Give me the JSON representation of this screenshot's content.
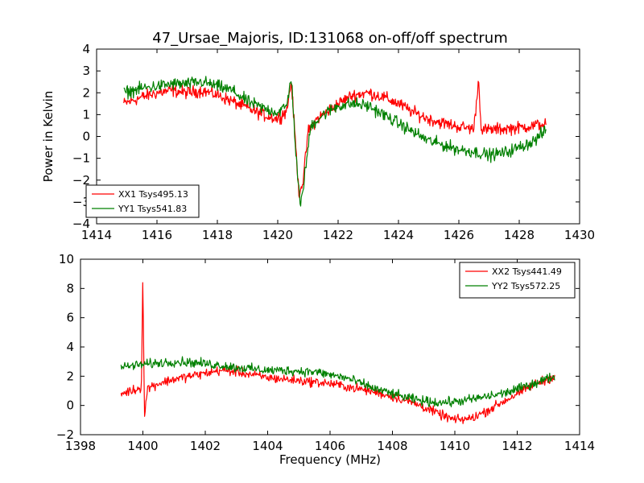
{
  "title": "47_Ursae_Majoris, ID:131068 on-off/off spectrum",
  "colors": {
    "xx": "#ff0000",
    "yy": "#008000"
  },
  "chart_data": [
    {
      "type": "line",
      "xlabel": "",
      "ylabel": "Power in Kelvin",
      "xlim": [
        1414,
        1430
      ],
      "ylim": [
        -4,
        4
      ],
      "xticks": [
        1414,
        1416,
        1418,
        1420,
        1422,
        1424,
        1426,
        1428,
        1430
      ],
      "yticks": [
        -4,
        -3,
        -2,
        -1,
        0,
        1,
        2,
        3,
        4
      ],
      "grid": false,
      "legend_position": "lower-left",
      "series": [
        {
          "name": "XX1 Tsys495.13",
          "color": "#ff0000",
          "points": [
            [
              1414.9,
              1.5
            ],
            [
              1415.5,
              1.8
            ],
            [
              1416.0,
              2.0
            ],
            [
              1416.5,
              2.1
            ],
            [
              1417.0,
              2.0
            ],
            [
              1417.5,
              2.1
            ],
            [
              1418.0,
              1.9
            ],
            [
              1418.5,
              1.6
            ],
            [
              1419.0,
              1.3
            ],
            [
              1419.5,
              1.0
            ],
            [
              1420.0,
              0.8
            ],
            [
              1420.3,
              1.2
            ],
            [
              1420.45,
              2.5
            ],
            [
              1420.6,
              -0.5
            ],
            [
              1420.7,
              -2.6
            ],
            [
              1420.85,
              -2.0
            ],
            [
              1421.0,
              0.2
            ],
            [
              1421.3,
              0.8
            ],
            [
              1421.7,
              1.2
            ],
            [
              1422.0,
              1.5
            ],
            [
              1422.5,
              1.9
            ],
            [
              1423.0,
              2.0
            ],
            [
              1423.5,
              1.8
            ],
            [
              1424.0,
              1.5
            ],
            [
              1424.5,
              1.1
            ],
            [
              1425.0,
              0.8
            ],
            [
              1425.5,
              0.6
            ],
            [
              1426.0,
              0.45
            ],
            [
              1426.5,
              0.35
            ],
            [
              1426.65,
              2.6
            ],
            [
              1426.75,
              0.3
            ],
            [
              1427.0,
              0.3
            ],
            [
              1427.5,
              0.35
            ],
            [
              1428.0,
              0.4
            ],
            [
              1428.5,
              0.5
            ],
            [
              1428.9,
              0.6
            ]
          ]
        },
        {
          "name": "YY1 Tsys541.83",
          "color": "#008000",
          "points": [
            [
              1414.9,
              2.0
            ],
            [
              1415.5,
              2.2
            ],
            [
              1416.0,
              2.3
            ],
            [
              1416.5,
              2.4
            ],
            [
              1417.0,
              2.4
            ],
            [
              1417.5,
              2.5
            ],
            [
              1418.0,
              2.3
            ],
            [
              1418.5,
              2.1
            ],
            [
              1419.0,
              1.6
            ],
            [
              1419.5,
              1.3
            ],
            [
              1420.0,
              1.1
            ],
            [
              1420.3,
              1.4
            ],
            [
              1420.45,
              2.8
            ],
            [
              1420.6,
              -0.8
            ],
            [
              1420.75,
              -3.3
            ],
            [
              1420.9,
              -1.7
            ],
            [
              1421.1,
              0.5
            ],
            [
              1421.5,
              1.0
            ],
            [
              1422.0,
              1.4
            ],
            [
              1422.5,
              1.5
            ],
            [
              1423.0,
              1.4
            ],
            [
              1423.5,
              1.0
            ],
            [
              1424.0,
              0.6
            ],
            [
              1424.5,
              0.2
            ],
            [
              1425.0,
              -0.2
            ],
            [
              1425.5,
              -0.4
            ],
            [
              1426.0,
              -0.6
            ],
            [
              1426.5,
              -0.7
            ],
            [
              1427.0,
              -0.85
            ],
            [
              1427.5,
              -0.75
            ],
            [
              1428.0,
              -0.5
            ],
            [
              1428.5,
              -0.2
            ],
            [
              1428.9,
              0.3
            ]
          ]
        }
      ]
    },
    {
      "type": "line",
      "xlabel": "Frequency (MHz)",
      "ylabel": "",
      "xlim": [
        1398,
        1414
      ],
      "ylim": [
        -2,
        10
      ],
      "xticks": [
        1398,
        1400,
        1402,
        1404,
        1406,
        1408,
        1410,
        1412,
        1414
      ],
      "yticks": [
        -2,
        0,
        2,
        4,
        6,
        8,
        10
      ],
      "grid": false,
      "legend_position": "upper-right",
      "series": [
        {
          "name": "XX2 Tsys441.49",
          "color": "#ff0000",
          "points": [
            [
              1399.3,
              0.8
            ],
            [
              1399.6,
              1.0
            ],
            [
              1399.95,
              1.2
            ],
            [
              1400.0,
              9.0
            ],
            [
              1400.05,
              -0.8
            ],
            [
              1400.15,
              1.2
            ],
            [
              1400.5,
              1.5
            ],
            [
              1401.0,
              1.8
            ],
            [
              1401.5,
              2.0
            ],
            [
              1402.0,
              2.2
            ],
            [
              1402.5,
              2.4
            ],
            [
              1403.0,
              2.3
            ],
            [
              1403.5,
              2.1
            ],
            [
              1404.0,
              1.9
            ],
            [
              1404.5,
              1.8
            ],
            [
              1405.0,
              1.7
            ],
            [
              1405.5,
              1.6
            ],
            [
              1406.0,
              1.5
            ],
            [
              1406.5,
              1.3
            ],
            [
              1407.0,
              1.1
            ],
            [
              1407.5,
              0.9
            ],
            [
              1408.0,
              0.6
            ],
            [
              1408.5,
              0.3
            ],
            [
              1409.0,
              -0.1
            ],
            [
              1409.5,
              -0.6
            ],
            [
              1410.0,
              -1.0
            ],
            [
              1410.5,
              -0.9
            ],
            [
              1411.0,
              -0.4
            ],
            [
              1411.5,
              0.2
            ],
            [
              1412.0,
              0.8
            ],
            [
              1412.5,
              1.4
            ],
            [
              1413.2,
              2.0
            ]
          ]
        },
        {
          "name": "YY2 Tsys572.25",
          "color": "#008000",
          "points": [
            [
              1399.3,
              2.6
            ],
            [
              1399.6,
              2.7
            ],
            [
              1400.0,
              2.8
            ],
            [
              1400.5,
              2.9
            ],
            [
              1401.0,
              3.0
            ],
            [
              1401.5,
              2.95
            ],
            [
              1402.0,
              2.85
            ],
            [
              1402.5,
              2.75
            ],
            [
              1403.0,
              2.6
            ],
            [
              1403.5,
              2.5
            ],
            [
              1404.0,
              2.4
            ],
            [
              1404.5,
              2.4
            ],
            [
              1405.0,
              2.35
            ],
            [
              1405.5,
              2.3
            ],
            [
              1406.0,
              2.1
            ],
            [
              1406.5,
              1.9
            ],
            [
              1407.0,
              1.5
            ],
            [
              1407.5,
              1.1
            ],
            [
              1408.0,
              0.8
            ],
            [
              1408.5,
              0.5
            ],
            [
              1409.0,
              0.3
            ],
            [
              1409.5,
              0.2
            ],
            [
              1410.0,
              0.25
            ],
            [
              1410.5,
              0.4
            ],
            [
              1411.0,
              0.6
            ],
            [
              1411.5,
              0.8
            ],
            [
              1412.0,
              1.1
            ],
            [
              1412.5,
              1.5
            ],
            [
              1413.2,
              2.0
            ]
          ]
        }
      ]
    }
  ]
}
